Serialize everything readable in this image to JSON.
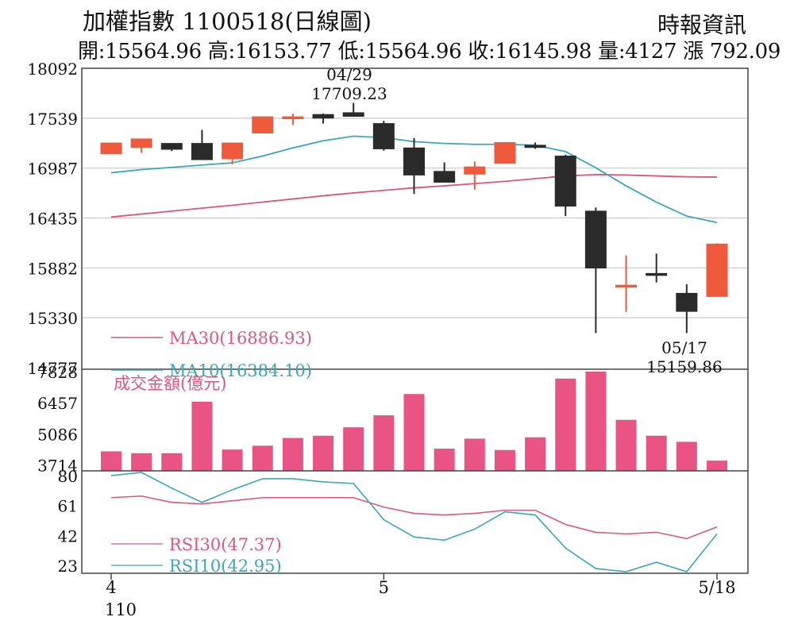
{
  "header": {
    "title": "加權指數 1100518(日線圖)",
    "source": "時報資訊",
    "ohlc": "開:15564.96 高:16153.77 低:15564.96 收:16145.98 量:4127 漲 792.09"
  },
  "chart_data": [
    {
      "type": "candlestick",
      "panel": "price",
      "y_ticks": [
        "18092",
        "17539",
        "16987",
        "16435",
        "15882",
        "15330",
        "14777"
      ],
      "ylim": [
        14777,
        18092
      ],
      "grid": true,
      "up_color": "#f05a3c",
      "down_color": "#2a2a2a",
      "candles": [
        {
          "o": 17145,
          "h": 17260,
          "l": 17140,
          "c": 17265
        },
        {
          "o": 17215,
          "h": 17300,
          "l": 17155,
          "c": 17310
        },
        {
          "o": 17260,
          "h": 17260,
          "l": 17175,
          "c": 17195
        },
        {
          "o": 17260,
          "h": 17410,
          "l": 17095,
          "c": 17080
        },
        {
          "o": 17090,
          "h": 17270,
          "l": 17030,
          "c": 17265
        },
        {
          "o": 17375,
          "h": 17560,
          "l": 17370,
          "c": 17555
        },
        {
          "o": 17555,
          "h": 17590,
          "l": 17465,
          "c": 17555
        },
        {
          "o": 17580,
          "h": 17590,
          "l": 17480,
          "c": 17540
        },
        {
          "o": 17600,
          "h": 17709.23,
          "l": 17555,
          "c": 17560
        },
        {
          "o": 17480,
          "h": 17510,
          "l": 17180,
          "c": 17200
        },
        {
          "o": 17210,
          "h": 17320,
          "l": 16700,
          "c": 16910
        },
        {
          "o": 16950,
          "h": 17050,
          "l": 16850,
          "c": 16830
        },
        {
          "o": 16920,
          "h": 17060,
          "l": 16750,
          "c": 17000
        },
        {
          "o": 17040,
          "h": 17275,
          "l": 17040,
          "c": 17270
        },
        {
          "o": 17240,
          "h": 17270,
          "l": 17200,
          "c": 17215
        },
        {
          "o": 17120,
          "h": 17135,
          "l": 16455,
          "c": 16565
        },
        {
          "o": 16510,
          "h": 16550,
          "l": 15159.86,
          "c": 15880
        },
        {
          "o": 15675,
          "h": 16020,
          "l": 15395,
          "c": 15690
        },
        {
          "o": 15820,
          "h": 16040,
          "l": 15720,
          "c": 15815
        },
        {
          "o": 15600,
          "h": 15700,
          "l": 15159.86,
          "c": 15400
        },
        {
          "o": 15564.96,
          "h": 16153.77,
          "l": 15564.96,
          "c": 16145.98
        }
      ],
      "series": [
        {
          "name": "MA30(16886.93)",
          "color": "#d9587e",
          "values": [
            16445,
            16478,
            16510,
            16543,
            16575,
            16610,
            16645,
            16680,
            16712,
            16740,
            16768,
            16790,
            16815,
            16840,
            16870,
            16900,
            16915,
            16910,
            16900,
            16890,
            16887
          ]
        },
        {
          "name": "MA10(16384.10)",
          "color": "#3aa7b8",
          "values": [
            16935,
            16970,
            16995,
            17020,
            17045,
            17120,
            17210,
            17290,
            17340,
            17325,
            17280,
            17260,
            17250,
            17250,
            17240,
            17170,
            16990,
            16790,
            16610,
            16455,
            16384
          ]
        }
      ],
      "annotations": [
        {
          "date": "04/29",
          "value": "17709.23"
        },
        {
          "date": "05/17",
          "value": "15159.86"
        }
      ]
    },
    {
      "type": "bar",
      "panel": "turnover",
      "title": "成交金額(億元)",
      "color": "#ea5484",
      "y_ticks": [
        "7828",
        "6457",
        "5086",
        "3714"
      ],
      "ylim": [
        3450,
        7828
      ],
      "values": [
        4310,
        4230,
        4230,
        6500,
        4390,
        4560,
        4900,
        5000,
        5370,
        5900,
        6840,
        4430,
        4870,
        4370,
        4930,
        7520,
        7890,
        5700,
        5000,
        4730,
        3900
      ]
    },
    {
      "type": "line",
      "panel": "rsi",
      "y_ticks": [
        "80",
        "61",
        "42",
        "23"
      ],
      "ylim": [
        18,
        83
      ],
      "series": [
        {
          "name": "RSI30(47.37)",
          "color": "#d9587e",
          "values": [
            66,
            67,
            63,
            62,
            64,
            66,
            66,
            66,
            66,
            60,
            56,
            55,
            56,
            58,
            58,
            49,
            44,
            43,
            44,
            40,
            47.4
          ]
        },
        {
          "name": "RSI10(42.95)",
          "color": "#3aa7b8",
          "values": [
            80,
            82,
            72,
            63,
            71,
            78,
            78,
            76,
            75,
            52,
            41,
            39,
            46,
            57,
            55,
            34,
            21,
            19,
            25,
            19,
            43
          ]
        }
      ],
      "x_ticks": [
        "4",
        "110",
        "5",
        "5/18"
      ]
    }
  ]
}
